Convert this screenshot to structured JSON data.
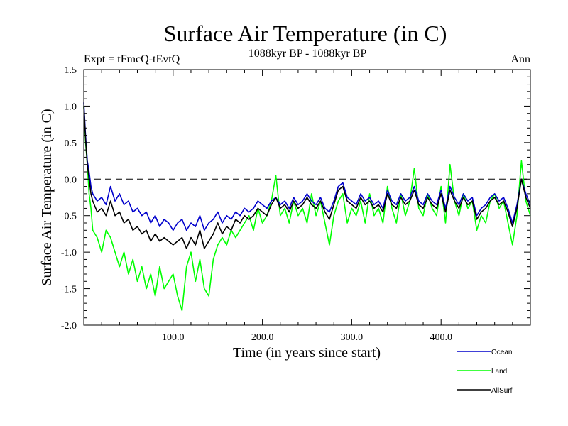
{
  "chart_data": {
    "type": "line",
    "title": "Surface Air Temperature (in C)",
    "subtitle_left": "Expt = tFmcQ-tEvtQ",
    "subtitle_center": "1088kyr BP - 1088kyr BP",
    "subtitle_right": "Ann",
    "xlabel": "Time (in years since start)",
    "ylabel": "Surface Air Temperature (in C)",
    "xlim": [
      0,
      500
    ],
    "ylim": [
      -2.0,
      1.5
    ],
    "x_ticks": [
      100,
      200,
      300,
      400
    ],
    "x_tick_labels": [
      "100.0",
      "200.0",
      "300.0",
      "400.0"
    ],
    "y_ticks": [
      -2.0,
      -1.5,
      -1.0,
      -0.5,
      0.0,
      0.5,
      1.0,
      1.5
    ],
    "y_tick_labels": [
      "-2.0",
      "-1.5",
      "-1.0",
      "-0.5",
      "0.0",
      "0.5",
      "1.0",
      "1.5"
    ],
    "reference_line": 0.0,
    "legend_position": "bottom-right",
    "series": [
      {
        "name": "Land",
        "color": "#00ff00",
        "x": [
          0,
          2,
          4,
          6,
          8,
          10,
          15,
          20,
          25,
          30,
          35,
          40,
          45,
          50,
          55,
          60,
          65,
          70,
          75,
          80,
          85,
          90,
          95,
          100,
          105,
          110,
          115,
          120,
          125,
          130,
          135,
          140,
          145,
          150,
          155,
          160,
          165,
          170,
          175,
          180,
          185,
          190,
          195,
          200,
          205,
          210,
          215,
          220,
          225,
          230,
          235,
          240,
          245,
          250,
          255,
          260,
          265,
          270,
          275,
          280,
          285,
          290,
          295,
          300,
          305,
          310,
          315,
          320,
          325,
          330,
          335,
          340,
          345,
          350,
          355,
          360,
          365,
          370,
          375,
          380,
          385,
          390,
          395,
          400,
          405,
          410,
          415,
          420,
          425,
          430,
          435,
          440,
          445,
          450,
          455,
          460,
          465,
          470,
          475,
          480,
          485,
          490,
          495,
          500
        ],
        "values": [
          1.0,
          0.5,
          0.2,
          -0.2,
          -0.4,
          -0.7,
          -0.8,
          -1.0,
          -0.7,
          -0.8,
          -1.0,
          -1.2,
          -1.0,
          -1.3,
          -1.1,
          -1.4,
          -1.2,
          -1.5,
          -1.3,
          -1.6,
          -1.2,
          -1.5,
          -1.4,
          -1.3,
          -1.6,
          -1.8,
          -1.2,
          -1.0,
          -1.4,
          -1.1,
          -1.5,
          -1.6,
          -1.1,
          -0.9,
          -0.8,
          -0.9,
          -0.7,
          -0.8,
          -0.7,
          -0.6,
          -0.5,
          -0.7,
          -0.4,
          -0.6,
          -0.5,
          -0.3,
          0.05,
          -0.5,
          -0.4,
          -0.6,
          -0.3,
          -0.5,
          -0.4,
          -0.6,
          -0.2,
          -0.5,
          -0.3,
          -0.6,
          -0.9,
          -0.5,
          -0.3,
          -0.2,
          -0.6,
          -0.4,
          -0.5,
          -0.3,
          -0.6,
          -0.2,
          -0.5,
          -0.4,
          -0.6,
          -0.1,
          -0.4,
          -0.6,
          -0.2,
          -0.5,
          -0.3,
          0.15,
          -0.4,
          -0.5,
          -0.2,
          -0.4,
          -0.5,
          -0.1,
          -0.6,
          0.2,
          -0.3,
          -0.5,
          -0.2,
          -0.4,
          -0.3,
          -0.7,
          -0.5,
          -0.6,
          -0.3,
          -0.2,
          -0.4,
          -0.3,
          -0.6,
          -0.9,
          -0.5,
          0.25,
          -0.3,
          -0.5
        ]
      },
      {
        "name": "Ocean",
        "color": "#0000cc",
        "x": [
          0,
          2,
          4,
          6,
          8,
          10,
          15,
          20,
          25,
          30,
          35,
          40,
          45,
          50,
          55,
          60,
          65,
          70,
          75,
          80,
          85,
          90,
          95,
          100,
          105,
          110,
          115,
          120,
          125,
          130,
          135,
          140,
          145,
          150,
          155,
          160,
          165,
          170,
          175,
          180,
          185,
          190,
          195,
          200,
          205,
          210,
          215,
          220,
          225,
          230,
          235,
          240,
          245,
          250,
          255,
          260,
          265,
          270,
          275,
          280,
          285,
          290,
          295,
          300,
          305,
          310,
          315,
          320,
          325,
          330,
          335,
          340,
          345,
          350,
          355,
          360,
          365,
          370,
          375,
          380,
          385,
          390,
          395,
          400,
          405,
          410,
          415,
          420,
          425,
          430,
          435,
          440,
          445,
          450,
          455,
          460,
          465,
          470,
          475,
          480,
          485,
          490,
          495,
          500
        ],
        "values": [
          1.05,
          0.6,
          0.25,
          0.1,
          -0.1,
          -0.2,
          -0.3,
          -0.25,
          -0.35,
          -0.1,
          -0.3,
          -0.2,
          -0.35,
          -0.3,
          -0.45,
          -0.4,
          -0.5,
          -0.45,
          -0.6,
          -0.5,
          -0.65,
          -0.55,
          -0.6,
          -0.7,
          -0.6,
          -0.55,
          -0.7,
          -0.6,
          -0.65,
          -0.5,
          -0.7,
          -0.6,
          -0.55,
          -0.45,
          -0.6,
          -0.5,
          -0.55,
          -0.45,
          -0.5,
          -0.4,
          -0.45,
          -0.4,
          -0.3,
          -0.35,
          -0.4,
          -0.3,
          -0.25,
          -0.35,
          -0.3,
          -0.4,
          -0.25,
          -0.35,
          -0.3,
          -0.2,
          -0.3,
          -0.35,
          -0.25,
          -0.4,
          -0.45,
          -0.3,
          -0.1,
          -0.05,
          -0.25,
          -0.3,
          -0.35,
          -0.2,
          -0.3,
          -0.25,
          -0.35,
          -0.3,
          -0.4,
          -0.15,
          -0.3,
          -0.35,
          -0.2,
          -0.3,
          -0.25,
          -0.1,
          -0.3,
          -0.35,
          -0.2,
          -0.3,
          -0.35,
          -0.15,
          -0.4,
          -0.1,
          -0.25,
          -0.35,
          -0.2,
          -0.3,
          -0.25,
          -0.5,
          -0.4,
          -0.35,
          -0.25,
          -0.2,
          -0.3,
          -0.25,
          -0.4,
          -0.6,
          -0.35,
          0.0,
          -0.2,
          -0.35
        ]
      },
      {
        "name": "AllSurf",
        "color": "#000000",
        "x": [
          0,
          2,
          4,
          6,
          8,
          10,
          15,
          20,
          25,
          30,
          35,
          40,
          45,
          50,
          55,
          60,
          65,
          70,
          75,
          80,
          85,
          90,
          95,
          100,
          105,
          110,
          115,
          120,
          125,
          130,
          135,
          140,
          145,
          150,
          155,
          160,
          165,
          170,
          175,
          180,
          185,
          190,
          195,
          200,
          205,
          210,
          215,
          220,
          225,
          230,
          235,
          240,
          245,
          250,
          255,
          260,
          265,
          270,
          275,
          280,
          285,
          290,
          295,
          300,
          305,
          310,
          315,
          320,
          325,
          330,
          335,
          340,
          345,
          350,
          355,
          360,
          365,
          370,
          375,
          380,
          385,
          390,
          395,
          400,
          405,
          410,
          415,
          420,
          425,
          430,
          435,
          440,
          445,
          450,
          455,
          460,
          465,
          470,
          475,
          480,
          485,
          490,
          495,
          500
        ],
        "values": [
          1.0,
          0.55,
          0.2,
          0.0,
          -0.2,
          -0.3,
          -0.45,
          -0.4,
          -0.5,
          -0.3,
          -0.5,
          -0.45,
          -0.6,
          -0.55,
          -0.7,
          -0.65,
          -0.75,
          -0.7,
          -0.85,
          -0.75,
          -0.85,
          -0.8,
          -0.85,
          -0.9,
          -0.85,
          -0.8,
          -0.95,
          -0.8,
          -0.9,
          -0.7,
          -0.95,
          -0.85,
          -0.75,
          -0.6,
          -0.75,
          -0.65,
          -0.7,
          -0.55,
          -0.6,
          -0.5,
          -0.55,
          -0.5,
          -0.4,
          -0.45,
          -0.5,
          -0.35,
          -0.25,
          -0.4,
          -0.35,
          -0.45,
          -0.3,
          -0.4,
          -0.35,
          -0.25,
          -0.35,
          -0.4,
          -0.3,
          -0.45,
          -0.55,
          -0.35,
          -0.15,
          -0.1,
          -0.3,
          -0.35,
          -0.4,
          -0.25,
          -0.35,
          -0.3,
          -0.4,
          -0.35,
          -0.45,
          -0.2,
          -0.35,
          -0.4,
          -0.25,
          -0.35,
          -0.3,
          -0.15,
          -0.35,
          -0.4,
          -0.25,
          -0.35,
          -0.4,
          -0.2,
          -0.45,
          -0.15,
          -0.3,
          -0.4,
          -0.25,
          -0.35,
          -0.3,
          -0.55,
          -0.45,
          -0.4,
          -0.3,
          -0.25,
          -0.35,
          -0.3,
          -0.45,
          -0.65,
          -0.4,
          0.0,
          -0.25,
          -0.4
        ]
      }
    ],
    "legend": [
      {
        "label": "Ocean",
        "color": "#0000cc"
      },
      {
        "label": "Land",
        "color": "#00ff00"
      },
      {
        "label": "AllSurf",
        "color": "#000000"
      }
    ]
  }
}
